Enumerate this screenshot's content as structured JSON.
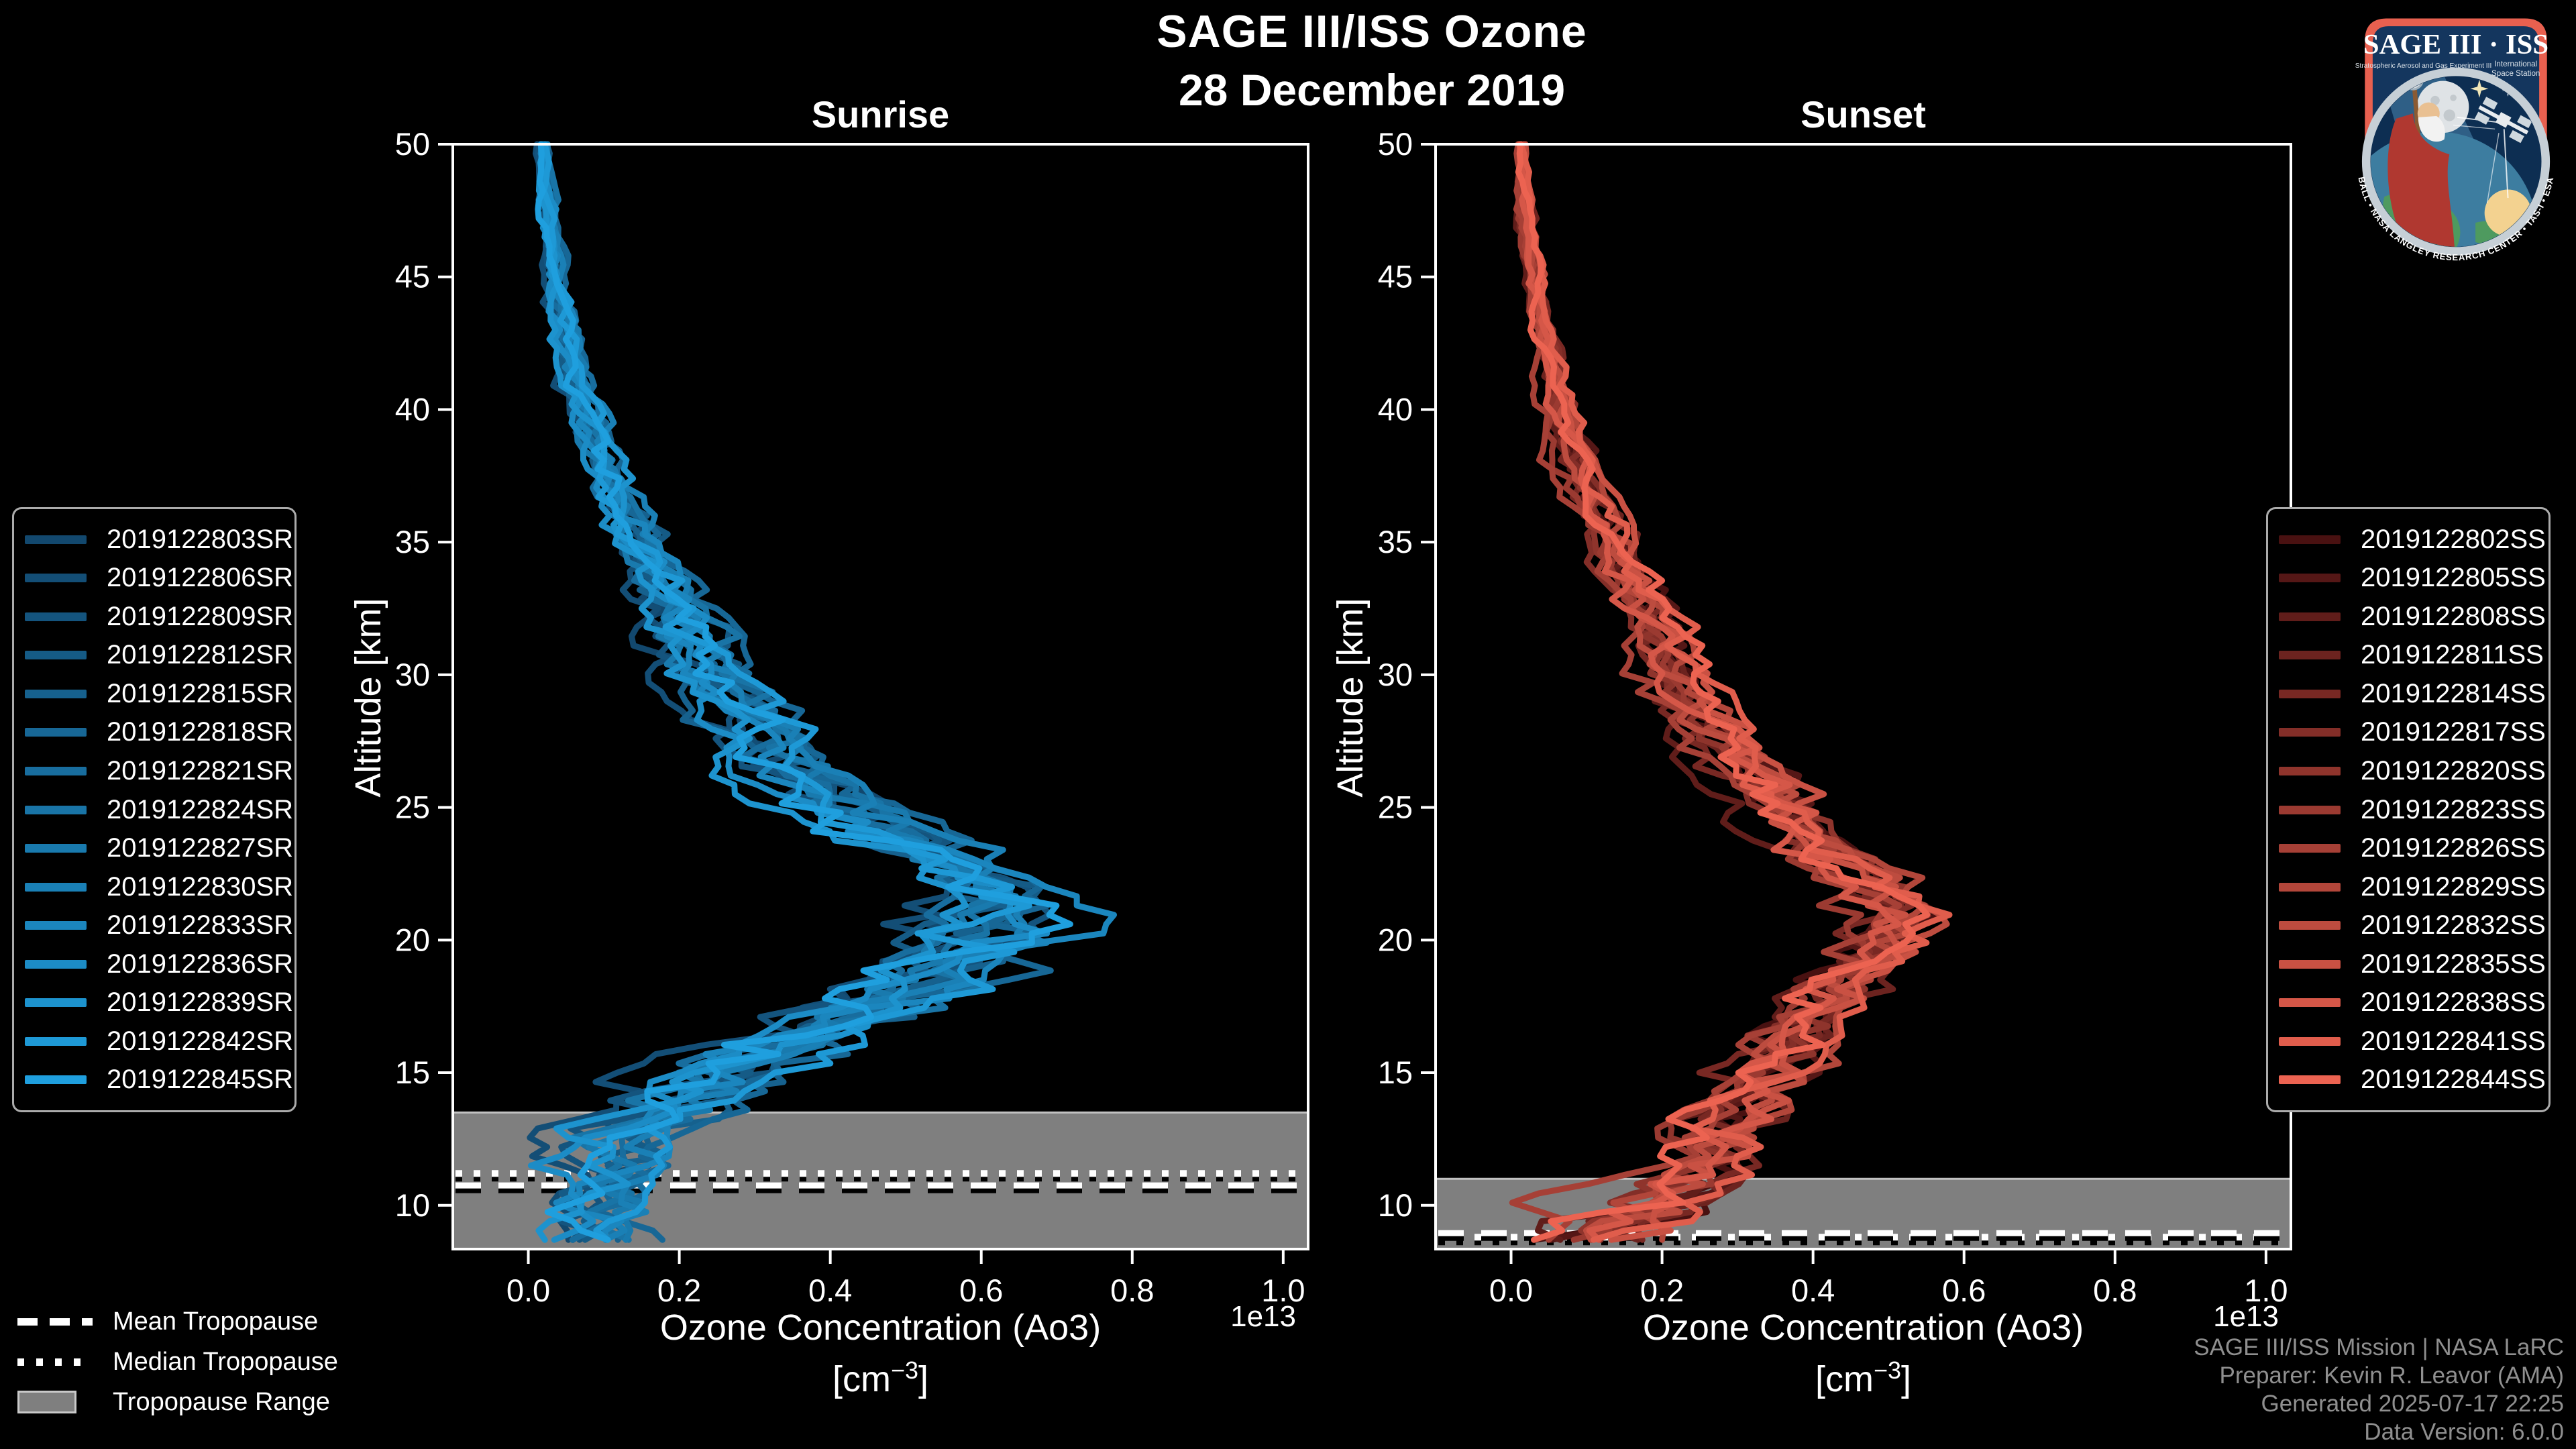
{
  "title": "SAGE III/ISS Ozone",
  "subtitle": "28 December 2019",
  "axis": {
    "ylabel": "Altitude [km]",
    "xlabel_line1": "Ozone Concentration (Ao3)",
    "unit_pre": "[cm",
    "unit_sup": "−3",
    "unit_post": "]",
    "offset": "1e13"
  },
  "chart_data": [
    {
      "type": "line",
      "title": "Sunrise",
      "xlabel": "Ozone Concentration (Ao3) [cm^-3]",
      "ylabel": "Altitude [km]",
      "x_multiplier": "1e13",
      "xlim": [
        -0.1,
        1.033
      ],
      "ylim": [
        8.35,
        50
      ],
      "xticks": [
        0.0,
        0.2,
        0.4,
        0.6,
        0.8,
        1.0
      ],
      "yticks": [
        10,
        15,
        20,
        25,
        30,
        35,
        40,
        45,
        50
      ],
      "grid": false,
      "legend_position": "outside-left",
      "color_start": "#12486e",
      "color_end": "#1f9fde",
      "series": [
        "2019122803SR",
        "2019122806SR",
        "2019122809SR",
        "2019122812SR",
        "2019122815SR",
        "2019122818SR",
        "2019122821SR",
        "2019122824SR",
        "2019122827SR",
        "2019122830SR",
        "2019122833SR",
        "2019122836SR",
        "2019122839SR",
        "2019122842SR",
        "2019122845SR"
      ],
      "profile": {
        "altitude": [
          50,
          47,
          45,
          43,
          41,
          39,
          37,
          35,
          33,
          31,
          29,
          27,
          25,
          24,
          23,
          22,
          21,
          20,
          19,
          18,
          17,
          16,
          15,
          14,
          13,
          12,
          11,
          10,
          9,
          8.4
        ],
        "value": [
          0.02,
          0.028,
          0.038,
          0.052,
          0.068,
          0.088,
          0.115,
          0.15,
          0.185,
          0.22,
          0.265,
          0.33,
          0.43,
          0.49,
          0.545,
          0.595,
          0.625,
          0.615,
          0.56,
          0.48,
          0.405,
          0.33,
          0.26,
          0.195,
          0.15,
          0.12,
          0.1,
          0.09,
          0.1,
          0.105
        ]
      },
      "spread": {
        "altitude": [
          50,
          45,
          40,
          35,
          30,
          25,
          22,
          20,
          18,
          16,
          14,
          12,
          10,
          8.4
        ],
        "value": [
          0.006,
          0.01,
          0.018,
          0.028,
          0.04,
          0.055,
          0.07,
          0.08,
          0.085,
          0.085,
          0.07,
          0.055,
          0.05,
          0.05
        ]
      },
      "tropopause": {
        "mean_km": 10.75,
        "median_km": 11.2,
        "range_top_km": 13.5,
        "range_bottom_km": 8.35
      }
    },
    {
      "type": "line",
      "title": "Sunset",
      "xlabel": "Ozone Concentration (Ao3) [cm^-3]",
      "ylabel": "Altitude [km]",
      "x_multiplier": "1e13",
      "xlim": [
        -0.1,
        1.033
      ],
      "ylim": [
        8.35,
        50
      ],
      "xticks": [
        0.0,
        0.2,
        0.4,
        0.6,
        0.8,
        1.0
      ],
      "yticks": [
        10,
        15,
        20,
        25,
        30,
        35,
        40,
        45,
        50
      ],
      "grid": false,
      "legend_position": "outside-right",
      "color_start": "#491111",
      "color_end": "#ec6351",
      "series": [
        "2019122802SS",
        "2019122805SS",
        "2019122808SS",
        "2019122811SS",
        "2019122814SS",
        "2019122817SS",
        "2019122820SS",
        "2019122823SS",
        "2019122826SS",
        "2019122829SS",
        "2019122832SS",
        "2019122835SS",
        "2019122838SS",
        "2019122841SS",
        "2019122844SS"
      ],
      "profile": {
        "altitude": [
          50,
          47,
          45,
          43,
          41,
          39,
          37,
          35,
          33,
          31,
          29,
          27,
          25,
          24,
          23,
          22,
          21,
          20,
          19,
          18,
          17,
          16,
          15,
          14,
          13,
          12,
          11,
          10,
          9,
          8.4
        ],
        "value": [
          0.012,
          0.02,
          0.03,
          0.042,
          0.058,
          0.078,
          0.102,
          0.132,
          0.163,
          0.195,
          0.23,
          0.285,
          0.35,
          0.385,
          0.425,
          0.46,
          0.49,
          0.475,
          0.45,
          0.415,
          0.38,
          0.345,
          0.315,
          0.29,
          0.27,
          0.255,
          0.22,
          0.15,
          0.085,
          0.06
        ]
      },
      "spread": {
        "altitude": [
          50,
          45,
          40,
          35,
          30,
          25,
          22,
          20,
          18,
          16,
          14,
          12,
          10,
          8.4
        ],
        "value": [
          0.005,
          0.008,
          0.014,
          0.022,
          0.032,
          0.042,
          0.048,
          0.05,
          0.05,
          0.05,
          0.052,
          0.06,
          0.07,
          0.075
        ]
      },
      "tropopause": {
        "mean_km": 8.95,
        "median_km": 8.8,
        "range_top_km": 11.0,
        "range_bottom_km": 8.35
      }
    }
  ],
  "tropopause_legend": {
    "mean": "Mean Tropopause",
    "median": "Median Tropopause",
    "range": "Tropopause Range"
  },
  "attribution": [
    "SAGE III/ISS Mission | NASA LaRC",
    "Preparer: Kevin R. Leavor (AMA)",
    "Generated 2025-07-17 22:25",
    "Data Version: 6.0.0"
  ],
  "logo": {
    "title": "SAGE III · ISS",
    "sub_left": "Stratospheric Aerosol and Gas Experiment III",
    "sub_right_1": "International",
    "sub_right_2": "Space Station",
    "ring_text": "BALL • NASA LANGLEY RESEARCH CENTER • TAS-I • ESA"
  },
  "colors": {
    "background": "#000000",
    "axes": "#ffffff",
    "tropopause_band": "#7f7f7f",
    "attribution_text": "#8f8f8f",
    "logo_border": "#e8604f",
    "logo_field": "#14365e"
  }
}
